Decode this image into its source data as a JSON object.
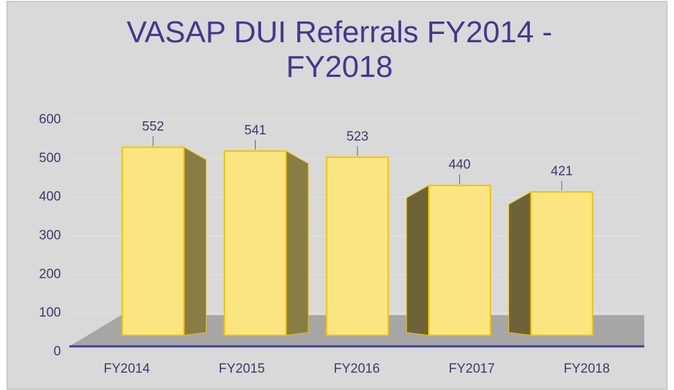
{
  "chart_data": {
    "type": "bar3d",
    "title": "VASAP DUI Referrals FY2014 - FY2018",
    "categories": [
      "FY2014",
      "FY2015",
      "FY2016",
      "FY2017",
      "FY2018"
    ],
    "values": [
      552,
      541,
      523,
      440,
      421
    ],
    "color": "#fbe580",
    "ylim": [
      0,
      600
    ],
    "yticks": [
      0,
      100,
      200,
      300,
      400,
      500,
      600
    ],
    "grid": true
  }
}
